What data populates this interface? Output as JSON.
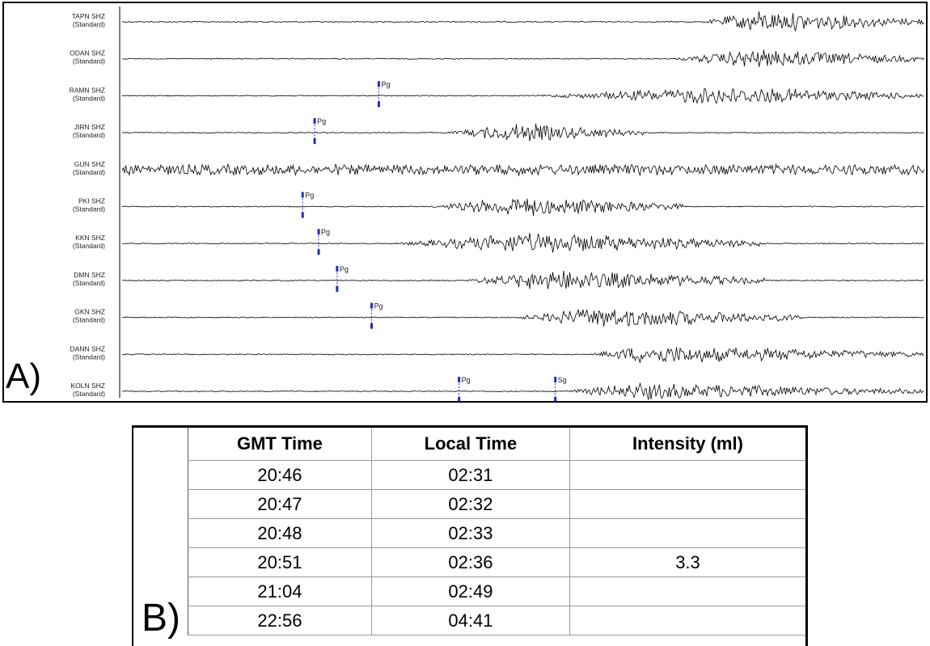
{
  "panel_a": {
    "label": "A)",
    "stations": [
      {
        "name": "TAPN SHZ",
        "filter": "(Standard)",
        "picks": [],
        "burst": [
          0.72,
          1.0,
          0.79,
          1.0
        ],
        "noise": 0.06
      },
      {
        "name": "ODAN SHZ",
        "filter": "(Standard)",
        "picks": [],
        "burst": [
          0.68,
          1.0,
          0.79,
          0.9
        ],
        "noise": 0.05
      },
      {
        "name": "RAMN SHZ",
        "filter": "(Standard)",
        "picks": [
          {
            "phase": "Pg",
            "at": 0.32
          }
        ],
        "burst": [
          0.5,
          1.0,
          0.75,
          0.85
        ],
        "noise": 0.05
      },
      {
        "name": "JIRN SHZ",
        "filter": "(Standard)",
        "picks": [
          {
            "phase": "Pg",
            "at": 0.24
          }
        ],
        "burst": [
          0.4,
          0.65,
          0.49,
          0.9
        ],
        "noise": 0.05
      },
      {
        "name": "GUN SHZ",
        "filter": "(Standard)",
        "picks": [],
        "burst": [
          0.0,
          1.0,
          0.5,
          0.55
        ],
        "noise": 0.5
      },
      {
        "name": "PKI SHZ",
        "filter": "(Standard)",
        "picks": [
          {
            "phase": "Pg",
            "at": 0.225
          }
        ],
        "burst": [
          0.38,
          0.7,
          0.49,
          1.0
        ],
        "noise": 0.05
      },
      {
        "name": "KKN SHZ",
        "filter": "(Standard)",
        "picks": [
          {
            "phase": "Pg",
            "at": 0.245
          }
        ],
        "burst": [
          0.33,
          0.8,
          0.5,
          1.0
        ],
        "noise": 0.05
      },
      {
        "name": "DMN SHZ",
        "filter": "(Standard)",
        "picks": [
          {
            "phase": "Pg",
            "at": 0.268
          }
        ],
        "burst": [
          0.42,
          0.8,
          0.53,
          1.0
        ],
        "noise": 0.05
      },
      {
        "name": "GKN SHZ",
        "filter": "(Standard)",
        "picks": [
          {
            "phase": "Pg",
            "at": 0.311
          }
        ],
        "burst": [
          0.48,
          0.85,
          0.6,
          1.0
        ],
        "noise": 0.05
      },
      {
        "name": "DANN SHZ",
        "filter": "(Standard)",
        "picks": [],
        "burst": [
          0.58,
          1.0,
          0.65,
          0.85
        ],
        "noise": 0.05
      },
      {
        "name": "KOLN SHZ",
        "filter": "(Standard)",
        "picks": [
          {
            "phase": "Pg",
            "at": 0.42
          },
          {
            "phase": "Sg",
            "at": 0.54
          }
        ],
        "burst": [
          0.54,
          1.0,
          0.65,
          0.8
        ],
        "noise": 0.05
      }
    ],
    "colors": {
      "trace": "#000000",
      "pick": "#1f2fbf",
      "divider": "#000000"
    }
  },
  "panel_b": {
    "label": "B)",
    "headers": [
      "GMT Time",
      "Local Time",
      "Intensity (ml)"
    ],
    "rows": [
      [
        "20:46",
        "02:31",
        ""
      ],
      [
        "20:47",
        "02:32",
        ""
      ],
      [
        "20:48",
        "02:33",
        ""
      ],
      [
        "20:51",
        "02:36",
        "3.3"
      ],
      [
        "21:04",
        "02:49",
        ""
      ],
      [
        "22:56",
        "04:41",
        ""
      ]
    ]
  },
  "chart_data": [
    {
      "type": "line",
      "series": [
        {
          "name": "TAPN SHZ"
        },
        {
          "name": "ODAN SHZ"
        },
        {
          "name": "RAMN SHZ"
        },
        {
          "name": "JIRN SHZ"
        },
        {
          "name": "GUN SHZ"
        },
        {
          "name": "PKI SHZ"
        },
        {
          "name": "KKN SHZ"
        },
        {
          "name": "DMN SHZ"
        },
        {
          "name": "GKN SHZ"
        },
        {
          "name": "DANN SHZ"
        },
        {
          "name": "KOLN SHZ"
        }
      ],
      "annotations": [
        "Pg",
        "Pg",
        "Pg",
        "Pg",
        "Pg",
        "Pg",
        "Pg",
        "Sg"
      ]
    },
    {
      "type": "table",
      "columns": [
        "GMT Time",
        "Local Time",
        "Intensity (ml)"
      ],
      "rows": [
        [
          "20:46",
          "02:31",
          ""
        ],
        [
          "20:47",
          "02:32",
          ""
        ],
        [
          "20:48",
          "02:33",
          ""
        ],
        [
          "20:51",
          "02:36",
          "3.3"
        ],
        [
          "21:04",
          "02:49",
          ""
        ],
        [
          "22:56",
          "04:41",
          ""
        ]
      ]
    }
  ]
}
